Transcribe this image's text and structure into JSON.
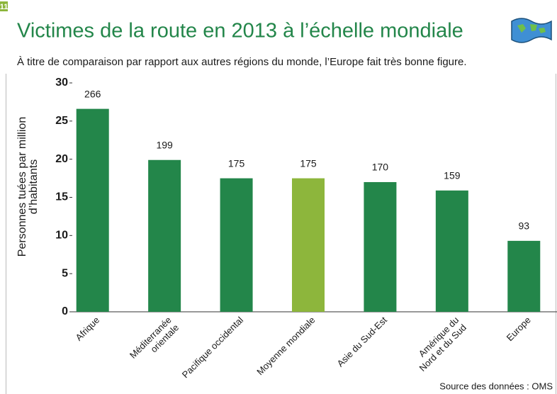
{
  "chart_data": {
    "type": "bar",
    "figure_number": "11",
    "title": "Victimes de la route en 2013 à l’échelle mondiale",
    "subtitle": "À titre de comparaison par rapport aux autres régions du monde, l’Europe fait très bonne figure.",
    "ylabel": [
      "Personnes tuées par million",
      "d’habitants"
    ],
    "categories": [
      [
        "Afrique"
      ],
      [
        "Méditerranée",
        "orientale"
      ],
      [
        "Pacifique occidental"
      ],
      [
        "Moyenne mondiale"
      ],
      [
        "Asie du Sud-Est"
      ],
      [
        "Amérique du",
        "Nord et du Sud"
      ],
      [
        "Europe"
      ]
    ],
    "values": [
      26.6,
      19.9,
      17.5,
      17.5,
      17.0,
      15.9,
      9.3
    ],
    "value_labels": [
      "266",
      "199",
      "175",
      "175",
      "170",
      "159",
      "93"
    ],
    "colors": [
      "#23864a",
      "#23864a",
      "#23864a",
      "#8db63c",
      "#23864a",
      "#23864a",
      "#23864a"
    ],
    "ylim": [
      0,
      30
    ],
    "yticks": [
      0,
      5,
      10,
      15,
      20,
      25,
      30
    ],
    "source": "Source des données : OMS"
  }
}
